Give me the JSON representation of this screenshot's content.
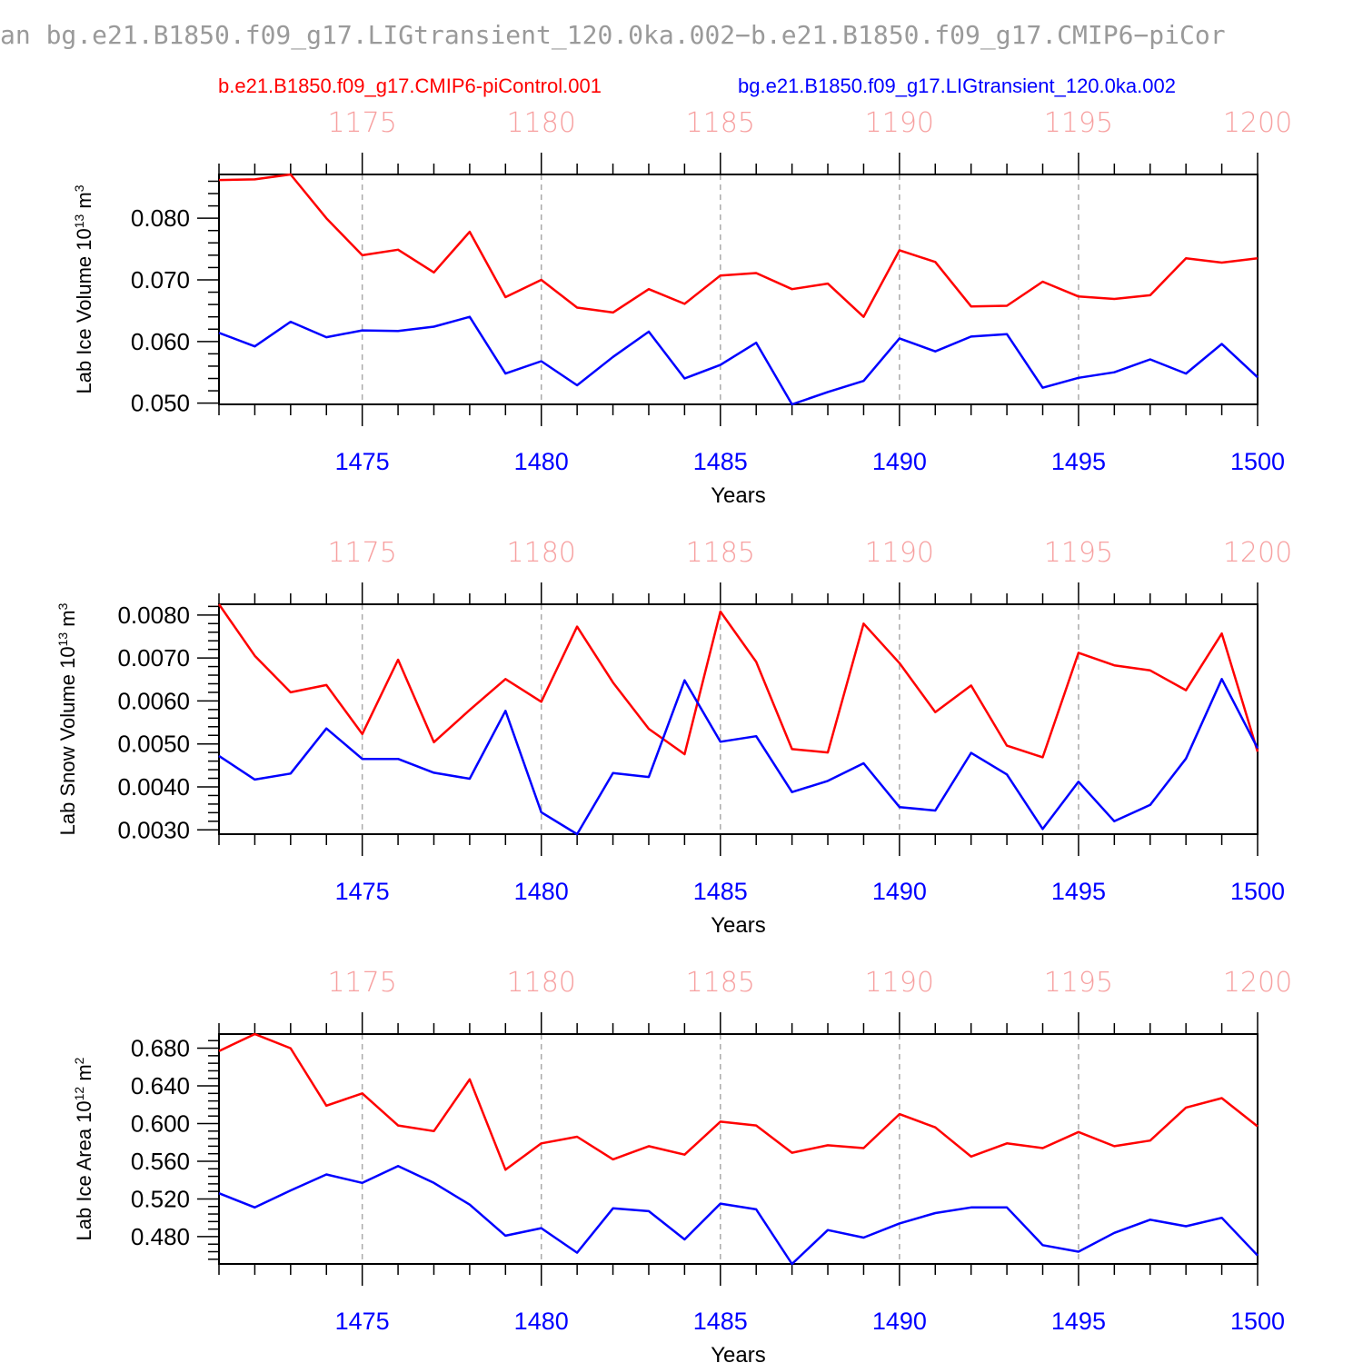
{
  "title": "an bg.e21.B1850.f09_g17.LIGtransient_120.0ka.002−b.e21.B1850.f09_g17.CMIP6−piCor",
  "legend": [
    {
      "label": "b.e21.B1850.f09_g17.CMIP6-piControl.001",
      "color": "#ff0000"
    },
    {
      "label": "bg.e21.B1850.f09_g17.LIGtransient_120.0ka.002",
      "color": "#0000ff"
    }
  ],
  "colors": {
    "control": "#ff0000",
    "transient": "#0000ff",
    "top_axis": "#f7a0a0",
    "bottom_axis": "#0000ff"
  },
  "chart_data": [
    {
      "type": "line",
      "ylabel": {
        "text": "Lab Ice Volume 10",
        "exp": "13",
        "unit": " m",
        "unit_exp": "3"
      },
      "xlabel": "Years",
      "x": [
        1471,
        1472,
        1473,
        1474,
        1475,
        1476,
        1477,
        1478,
        1479,
        1480,
        1481,
        1482,
        1483,
        1484,
        1485,
        1486,
        1487,
        1488,
        1489,
        1490,
        1491,
        1492,
        1493,
        1494,
        1495,
        1496,
        1497,
        1498,
        1499,
        1500
      ],
      "xlim": [
        1471,
        1500
      ],
      "x_ticks": [
        "1475",
        "1480",
        "1485",
        "1490",
        "1495",
        "1500"
      ],
      "x_tick_values": [
        1475,
        1480,
        1485,
        1490,
        1495,
        1500
      ],
      "top_ticks": [
        "1175",
        "1180",
        "1185",
        "1190",
        "1195",
        "1200"
      ],
      "ylim": [
        0.0498,
        0.0871
      ],
      "y_ticks": [
        "0.050",
        "0.060",
        "0.070",
        "0.080"
      ],
      "y_tick_values": [
        0.05,
        0.06,
        0.07,
        0.08
      ],
      "y_minor_step": 0.002,
      "series": [
        {
          "name": "b.e21.B1850.f09_g17.CMIP6-piControl.001",
          "color": "#ff0000",
          "values": [
            0.0862,
            0.0863,
            0.0871,
            0.08,
            0.074,
            0.0749,
            0.0712,
            0.0778,
            0.0672,
            0.07,
            0.0655,
            0.0647,
            0.0685,
            0.0661,
            0.0707,
            0.0711,
            0.0685,
            0.0694,
            0.064,
            0.0748,
            0.0729,
            0.0657,
            0.0658,
            0.0697,
            0.0673,
            0.0669,
            0.0675,
            0.0735,
            0.0728,
            0.0735
          ]
        },
        {
          "name": "bg.e21.B1850.f09_g17.LIGtransient_120.0ka.002",
          "color": "#0000ff",
          "values": [
            0.0614,
            0.0592,
            0.0632,
            0.0607,
            0.0618,
            0.0617,
            0.0624,
            0.064,
            0.0548,
            0.0568,
            0.0529,
            0.0575,
            0.0616,
            0.054,
            0.0562,
            0.0598,
            0.0498,
            0.0518,
            0.0536,
            0.0605,
            0.0584,
            0.0608,
            0.0612,
            0.0525,
            0.0541,
            0.055,
            0.0571,
            0.0548,
            0.0596,
            0.0542
          ]
        }
      ]
    },
    {
      "type": "line",
      "ylabel": {
        "text": "Lab Snow Volume 10",
        "exp": "13",
        "unit": " m",
        "unit_exp": "3"
      },
      "xlabel": "Years",
      "x": [
        1471,
        1472,
        1473,
        1474,
        1475,
        1476,
        1477,
        1478,
        1479,
        1480,
        1481,
        1482,
        1483,
        1484,
        1485,
        1486,
        1487,
        1488,
        1489,
        1490,
        1491,
        1492,
        1493,
        1494,
        1495,
        1496,
        1497,
        1498,
        1499,
        1500
      ],
      "xlim": [
        1471,
        1500
      ],
      "x_ticks": [
        "1475",
        "1480",
        "1485",
        "1490",
        "1495",
        "1500"
      ],
      "x_tick_values": [
        1475,
        1480,
        1485,
        1490,
        1495,
        1500
      ],
      "top_ticks": [
        "1175",
        "1180",
        "1185",
        "1190",
        "1195",
        "1200"
      ],
      "ylim": [
        0.0029,
        0.00825
      ],
      "y_ticks": [
        "0.0030",
        "0.0040",
        "0.0050",
        "0.0060",
        "0.0070",
        "0.0080"
      ],
      "y_tick_values": [
        0.003,
        0.004,
        0.005,
        0.006,
        0.007,
        0.008
      ],
      "y_minor_step": 0.0002,
      "series": [
        {
          "name": "b.e21.B1850.f09_g17.CMIP6-piControl.001",
          "color": "#ff0000",
          "values": [
            0.00825,
            0.00705,
            0.0062,
            0.00637,
            0.00523,
            0.00696,
            0.00504,
            0.00579,
            0.00651,
            0.00598,
            0.00773,
            0.00643,
            0.00535,
            0.00476,
            0.00808,
            0.00691,
            0.00488,
            0.0048,
            0.0078,
            0.00688,
            0.00574,
            0.00636,
            0.00496,
            0.00469,
            0.00712,
            0.00683,
            0.00671,
            0.00625,
            0.00757,
            0.00482
          ]
        },
        {
          "name": "bg.e21.B1850.f09_g17.LIGtransient_120.0ka.002",
          "color": "#0000ff",
          "values": [
            0.00472,
            0.00417,
            0.00431,
            0.00536,
            0.00465,
            0.00465,
            0.00433,
            0.00419,
            0.00577,
            0.00341,
            0.0029,
            0.00432,
            0.00423,
            0.00648,
            0.00505,
            0.00518,
            0.00388,
            0.00414,
            0.00455,
            0.00353,
            0.00345,
            0.00479,
            0.00429,
            0.00302,
            0.00412,
            0.0032,
            0.00358,
            0.00466,
            0.00651,
            0.0049
          ]
        }
      ]
    },
    {
      "type": "line",
      "ylabel": {
        "text": "Lab Ice Area 10",
        "exp": "12",
        "unit": " m",
        "unit_exp": "2"
      },
      "xlabel": "Years",
      "x": [
        1471,
        1472,
        1473,
        1474,
        1475,
        1476,
        1477,
        1478,
        1479,
        1480,
        1481,
        1482,
        1483,
        1484,
        1485,
        1486,
        1487,
        1488,
        1489,
        1490,
        1491,
        1492,
        1493,
        1494,
        1495,
        1496,
        1497,
        1498,
        1499,
        1500
      ],
      "xlim": [
        1471,
        1500
      ],
      "x_ticks": [
        "1475",
        "1480",
        "1485",
        "1490",
        "1495",
        "1500"
      ],
      "x_tick_values": [
        1475,
        1480,
        1485,
        1490,
        1495,
        1500
      ],
      "top_ticks": [
        "1175",
        "1180",
        "1185",
        "1190",
        "1195",
        "1200"
      ],
      "ylim": [
        0.451,
        0.695
      ],
      "y_ticks": [
        "0.480",
        "0.520",
        "0.560",
        "0.600",
        "0.640",
        "0.680"
      ],
      "y_tick_values": [
        0.48,
        0.52,
        0.56,
        0.6,
        0.64,
        0.68
      ],
      "y_minor_step": 0.008,
      "series": [
        {
          "name": "b.e21.B1850.f09_g17.CMIP6-piControl.001",
          "color": "#ff0000",
          "values": [
            0.677,
            0.695,
            0.68,
            0.619,
            0.632,
            0.598,
            0.592,
            0.647,
            0.551,
            0.579,
            0.586,
            0.562,
            0.576,
            0.567,
            0.602,
            0.598,
            0.569,
            0.577,
            0.574,
            0.61,
            0.596,
            0.565,
            0.579,
            0.574,
            0.591,
            0.576,
            0.582,
            0.617,
            0.627,
            0.597
          ]
        },
        {
          "name": "bg.e21.B1850.f09_g17.LIGtransient_120.0ka.002",
          "color": "#0000ff",
          "values": [
            0.526,
            0.511,
            0.529,
            0.546,
            0.537,
            0.555,
            0.537,
            0.514,
            0.481,
            0.489,
            0.463,
            0.51,
            0.507,
            0.477,
            0.515,
            0.509,
            0.451,
            0.487,
            0.479,
            0.494,
            0.505,
            0.511,
            0.511,
            0.471,
            0.464,
            0.484,
            0.498,
            0.491,
            0.5,
            0.46
          ]
        }
      ]
    }
  ]
}
